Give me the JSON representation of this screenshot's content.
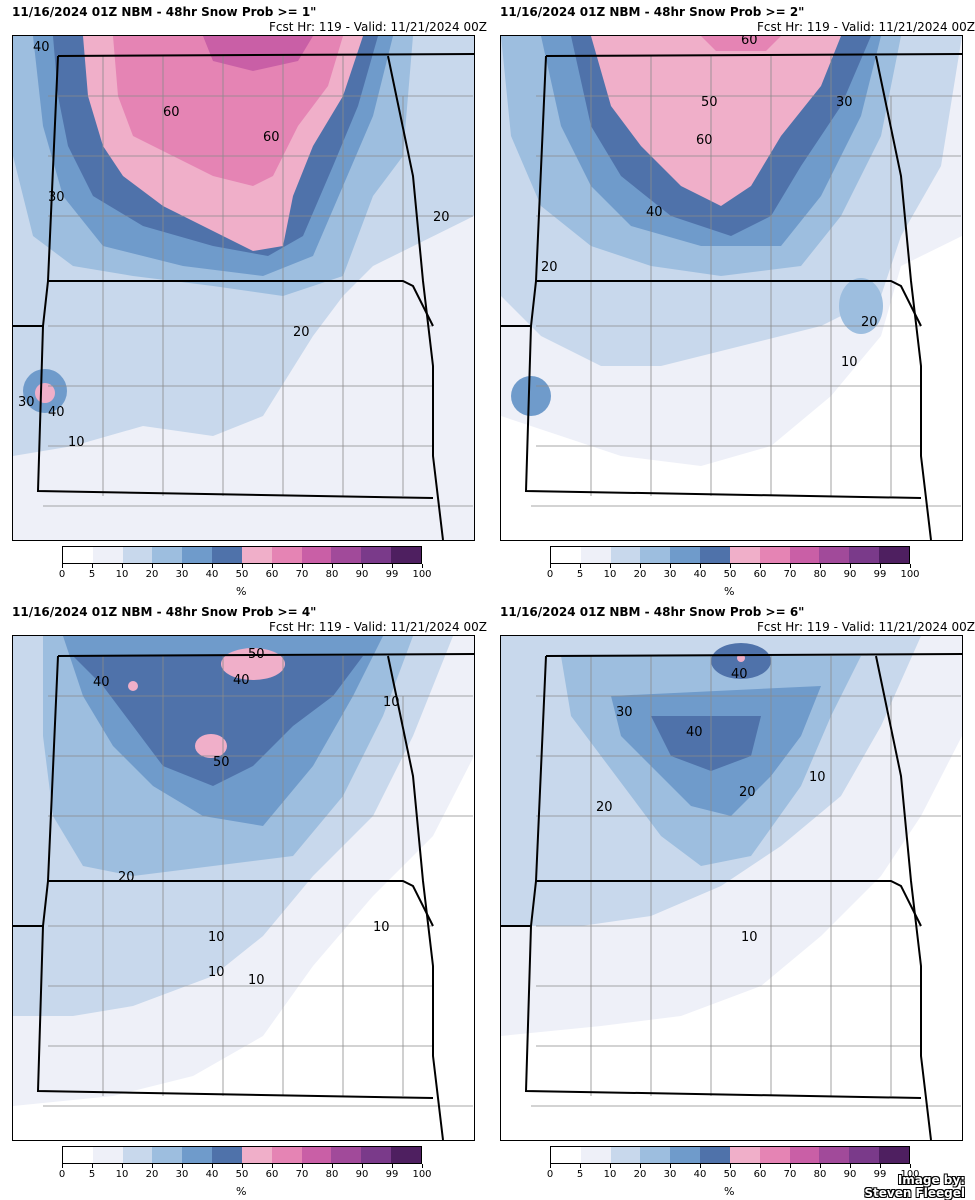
{
  "panels": [
    {
      "title": "11/16/2024 01Z NBM - 48hr Snow Prob >= 1\"",
      "subtitle": "Fcst Hr: 119 - Valid: 11/21/2024 00Z",
      "contour_labels": [
        "40",
        "60",
        "60",
        "30",
        "20",
        "20",
        "30",
        "40",
        "10"
      ]
    },
    {
      "title": "11/16/2024 01Z NBM - 48hr Snow Prob >= 2\"",
      "subtitle": "Fcst Hr: 119 - Valid: 11/21/2024 00Z",
      "contour_labels": [
        "50",
        "60",
        "40",
        "30",
        "20",
        "20",
        "10",
        "60"
      ]
    },
    {
      "title": "11/16/2024 01Z NBM - 48hr Snow Prob >= 4\"",
      "subtitle": "Fcst Hr: 119 - Valid: 11/21/2024 00Z",
      "contour_labels": [
        "40",
        "50",
        "40",
        "50",
        "10",
        "20",
        "10",
        "10",
        "10",
        "10"
      ]
    },
    {
      "title": "11/16/2024 01Z NBM - 48hr Snow Prob >= 6\"",
      "subtitle": "Fcst Hr: 119 - Valid: 11/21/2024 00Z",
      "contour_labels": [
        "40",
        "30",
        "40",
        "20",
        "20",
        "10",
        "10"
      ]
    }
  ],
  "colorbar": {
    "ticks": [
      "0",
      "5",
      "10",
      "20",
      "30",
      "40",
      "50",
      "60",
      "70",
      "80",
      "90",
      "99",
      "100"
    ],
    "colors": [
      "#ffffff",
      "#eef0f8",
      "#c8d8ec",
      "#9dbedf",
      "#6f9bcb",
      "#4f72aa",
      "#f0afc9",
      "#e584b4",
      "#c95fa6",
      "#a14a9a",
      "#7a3a8a",
      "#4e1f60"
    ],
    "unit": "%"
  },
  "credit": {
    "line1": "Image by:",
    "line2": "Steven Fleegel"
  }
}
